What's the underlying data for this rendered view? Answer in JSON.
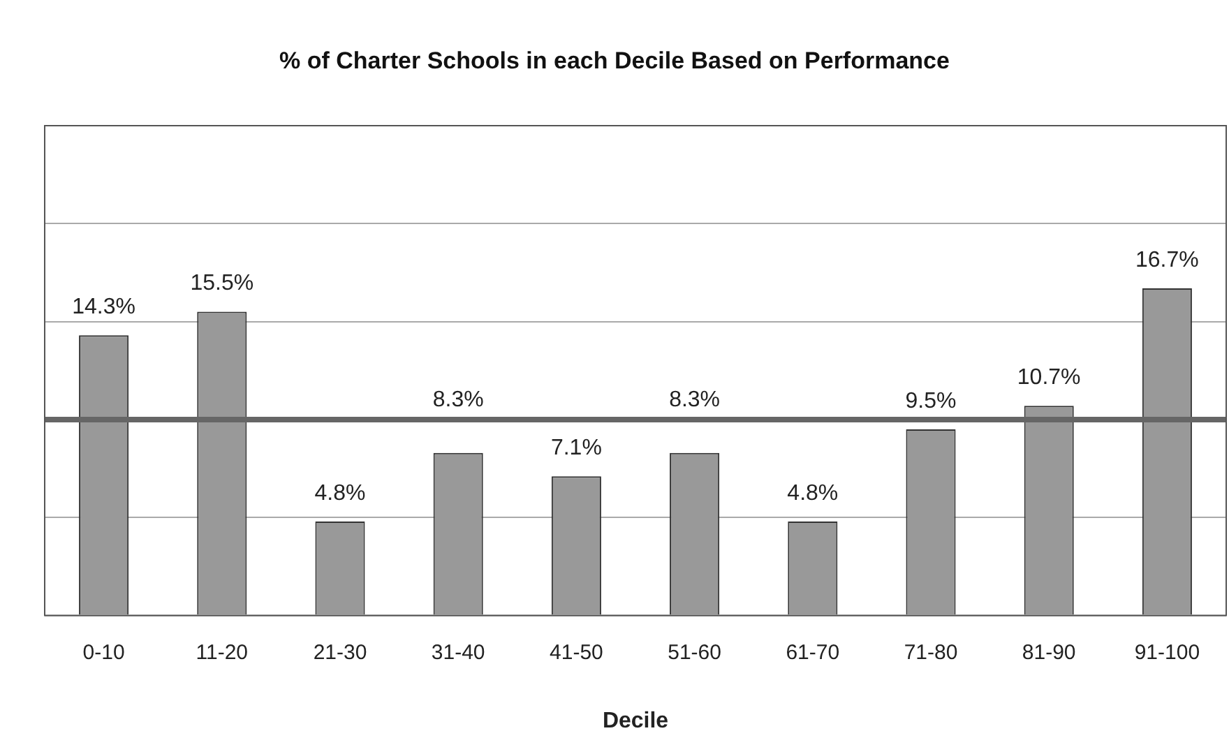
{
  "chart_data": {
    "type": "bar",
    "title": "% of Charter Schools in each Decile Based on Performance",
    "xlabel": "Decile",
    "categories": [
      "0-10",
      "11-20",
      "21-30",
      "31-40",
      "41-50",
      "51-60",
      "61-70",
      "71-80",
      "81-90",
      "91-100"
    ],
    "values": [
      14.3,
      15.5,
      4.8,
      8.3,
      7.1,
      8.3,
      4.8,
      9.5,
      10.7,
      16.7
    ],
    "value_labels": [
      "14.3%",
      "15.5%",
      "4.8%",
      "8.3%",
      "7.1%",
      "8.3%",
      "4.8%",
      "9.5%",
      "10.7%",
      "16.7%"
    ],
    "color": "#999999",
    "ylim": [
      0,
      25
    ],
    "yticks": [
      {
        "value": 0,
        "label": null
      },
      {
        "value": 5,
        "label": null
      },
      {
        "value": 10,
        "label": null
      },
      {
        "value": 15,
        "label": null
      },
      {
        "value": 20,
        "label": null
      },
      {
        "value": 25,
        "label": null
      }
    ],
    "tick_labels": "x",
    "grid": "y",
    "legend": false,
    "ref_lines": [
      {
        "axis": "y",
        "value": 10,
        "color": "#666666"
      }
    ]
  }
}
